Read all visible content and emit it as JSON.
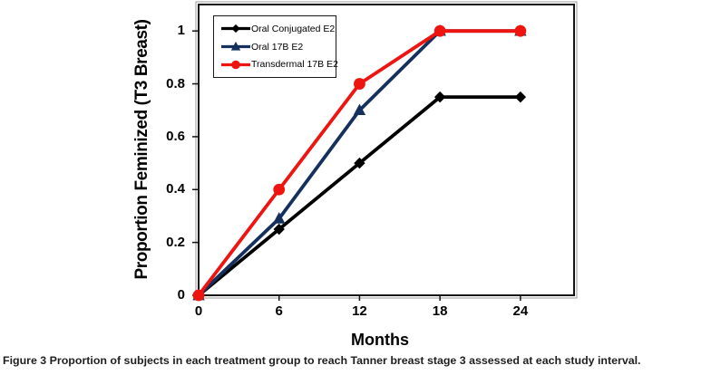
{
  "figure": {
    "caption_label": "Figure 3",
    "caption_text": "Proportion of subjects in each treatment group to reach Tanner breast stage 3 assessed at each study interval."
  },
  "colors": {
    "axis": "#141414",
    "plot_background": "#ffffff",
    "outer_border": "#9a9a9a",
    "series_black": "#000000",
    "series_navy": "#16305e",
    "series_red": "#ee1410"
  },
  "chart_data": {
    "type": "line",
    "title": "",
    "xlabel": "Months",
    "ylabel": "Proportion Feminized (T3 Breast)",
    "x": [
      0,
      6,
      12,
      18,
      24
    ],
    "xtick_labels": [
      "0",
      "6",
      "12",
      "18",
      "24"
    ],
    "yticks": [
      0,
      0.2,
      0.4,
      0.6,
      0.8,
      1
    ],
    "ytick_labels": [
      "0",
      "0.2",
      "0.4",
      "0.6",
      "0.8",
      "1"
    ],
    "xlim": [
      0,
      28
    ],
    "ylim": [
      0,
      1.1
    ],
    "grid": false,
    "legend_position": "upper-left-inside",
    "series": [
      {
        "name": "Oral Conjugated E2",
        "color": "#000000",
        "marker": "diamond",
        "values": [
          0,
          0.25,
          0.5,
          0.75,
          0.75
        ]
      },
      {
        "name": "Oral 17B E2",
        "color": "#16305e",
        "marker": "triangle",
        "values": [
          0,
          0.29,
          0.7,
          1,
          1
        ]
      },
      {
        "name": "Transdermal 17B E2",
        "color": "#ee1410",
        "marker": "circle",
        "values": [
          0,
          0.4,
          0.8,
          1,
          1
        ]
      }
    ]
  }
}
